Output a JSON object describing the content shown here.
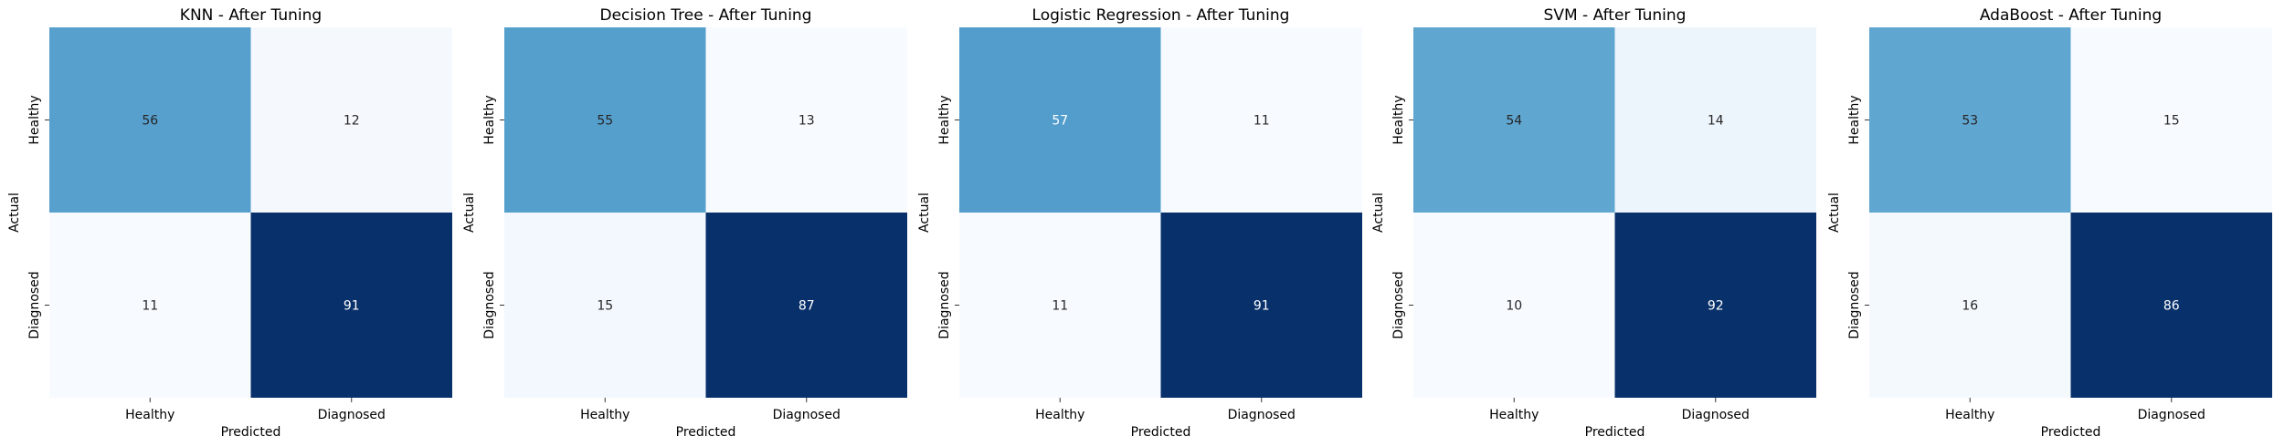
{
  "chart_data": [
    {
      "type": "heatmap",
      "title": "KNN - After Tuning",
      "xlabel": "Predicted",
      "ylabel": "Actual",
      "x_categories": [
        "Healthy",
        "Diagnosed"
      ],
      "y_categories": [
        "Healthy",
        "Diagnosed"
      ],
      "values": [
        [
          56,
          12
        ],
        [
          11,
          91
        ]
      ],
      "colormap": "Blues",
      "colorbar": false
    },
    {
      "type": "heatmap",
      "title": "Decision Tree - After Tuning",
      "xlabel": "Predicted",
      "ylabel": "Actual",
      "x_categories": [
        "Healthy",
        "Diagnosed"
      ],
      "y_categories": [
        "Healthy",
        "Diagnosed"
      ],
      "values": [
        [
          55,
          13
        ],
        [
          15,
          87
        ]
      ],
      "colormap": "Blues",
      "colorbar": false
    },
    {
      "type": "heatmap",
      "title": "Logistic Regression - After Tuning",
      "xlabel": "Predicted",
      "ylabel": "Actual",
      "x_categories": [
        "Healthy",
        "Diagnosed"
      ],
      "y_categories": [
        "Healthy",
        "Diagnosed"
      ],
      "values": [
        [
          57,
          11
        ],
        [
          11,
          91
        ]
      ],
      "colormap": "Blues",
      "colorbar": false
    },
    {
      "type": "heatmap",
      "title": "SVM - After Tuning",
      "xlabel": "Predicted",
      "ylabel": "Actual",
      "x_categories": [
        "Healthy",
        "Diagnosed"
      ],
      "y_categories": [
        "Healthy",
        "Diagnosed"
      ],
      "values": [
        [
          54,
          14
        ],
        [
          10,
          92
        ]
      ],
      "colormap": "Blues",
      "colorbar": false
    },
    {
      "type": "heatmap",
      "title": "AdaBoost - After Tuning",
      "xlabel": "Predicted",
      "ylabel": "Actual",
      "x_categories": [
        "Healthy",
        "Diagnosed"
      ],
      "y_categories": [
        "Healthy",
        "Diagnosed"
      ],
      "values": [
        [
          53,
          15
        ],
        [
          16,
          86
        ]
      ],
      "colormap": "Blues",
      "colorbar": false
    }
  ]
}
